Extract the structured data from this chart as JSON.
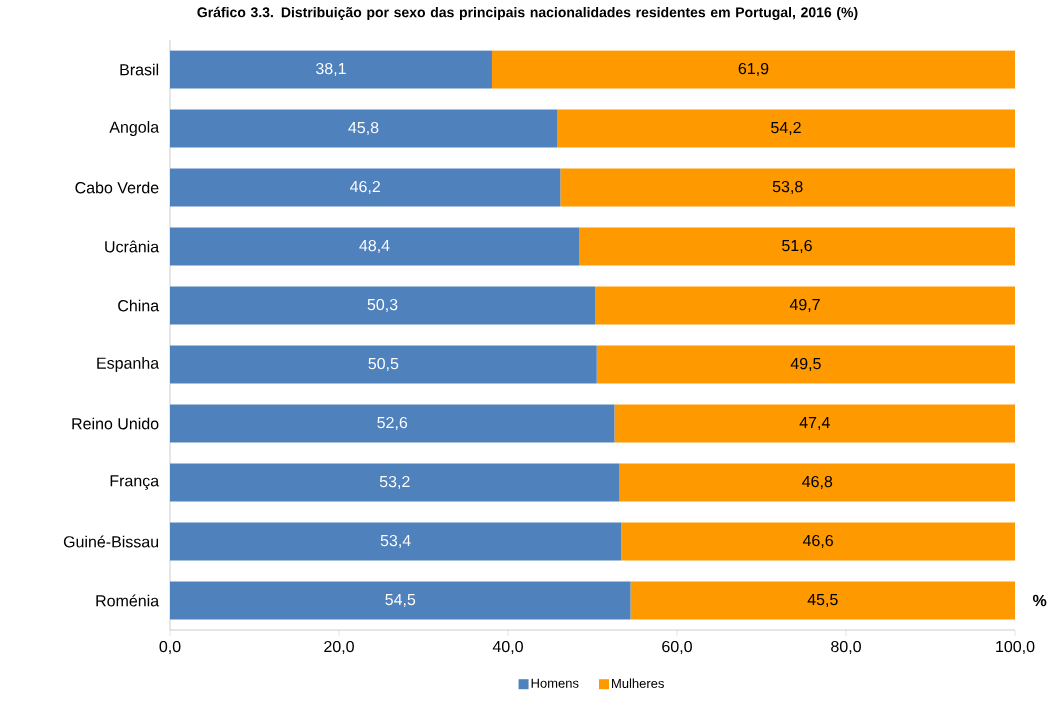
{
  "chart_data": {
    "type": "bar",
    "orientation": "horizontal",
    "stacked": true,
    "title": "Gráfico 3.3. Distribuição por sexo das principais nacionalidades residentes em Portugal, 2016 (%)",
    "xlabel": "%",
    "categories": [
      "Brasil",
      "Angola",
      "Cabo Verde",
      "Ucrânia",
      "China",
      "Espanha",
      "Reino Unido",
      "França",
      "Guiné-Bissau",
      "Roménia"
    ],
    "series": [
      {
        "name": "Homens",
        "color": "#4f81bd",
        "values": [
          38.1,
          45.8,
          46.2,
          48.4,
          50.3,
          50.5,
          52.6,
          53.2,
          53.4,
          54.5
        ],
        "value_labels": [
          "38,1",
          "45,8",
          "46,2",
          "48,4",
          "50,3",
          "50,5",
          "52,6",
          "53,2",
          "53,4",
          "54,5"
        ]
      },
      {
        "name": "Mulheres",
        "color": "#ff9900",
        "values": [
          61.9,
          54.2,
          53.8,
          51.6,
          49.7,
          49.5,
          47.4,
          46.8,
          46.6,
          45.5
        ],
        "value_labels": [
          "61,9",
          "54,2",
          "53,8",
          "51,6",
          "49,7",
          "49,5",
          "47,4",
          "46,8",
          "46,6",
          "45,5"
        ]
      }
    ],
    "xlim": [
      0,
      100
    ],
    "xticks": [
      {
        "value": 0,
        "label": "0,0"
      },
      {
        "value": 20,
        "label": "20,0"
      },
      {
        "value": 40,
        "label": "40,0"
      },
      {
        "value": 60,
        "label": "60,0"
      },
      {
        "value": 80,
        "label": "80,0"
      },
      {
        "value": 100,
        "label": "100,0"
      }
    ],
    "grid": false,
    "legend": "bottom"
  }
}
